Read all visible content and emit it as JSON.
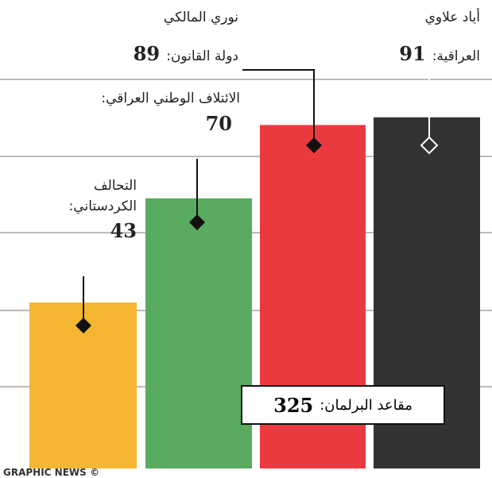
{
  "chart_data": {
    "type": "bar",
    "categories": [
      "التحالف الكردستاني:",
      "الائتلاف الوطني العراقي:",
      "دولة القانون:",
      "العراقية:"
    ],
    "leaders": [
      null,
      null,
      "نوري المالكي",
      "أياد علاوي"
    ],
    "values": [
      43,
      70,
      89,
      91
    ],
    "colors": [
      "#f5b731",
      "#58ab5f",
      "#ea3a40",
      "#333333"
    ],
    "ylim": [
      0,
      100
    ],
    "total": {
      "label": "مقاعد البرلمان:",
      "value": 325
    },
    "credit": "GRAPHIC NEWS ©"
  }
}
